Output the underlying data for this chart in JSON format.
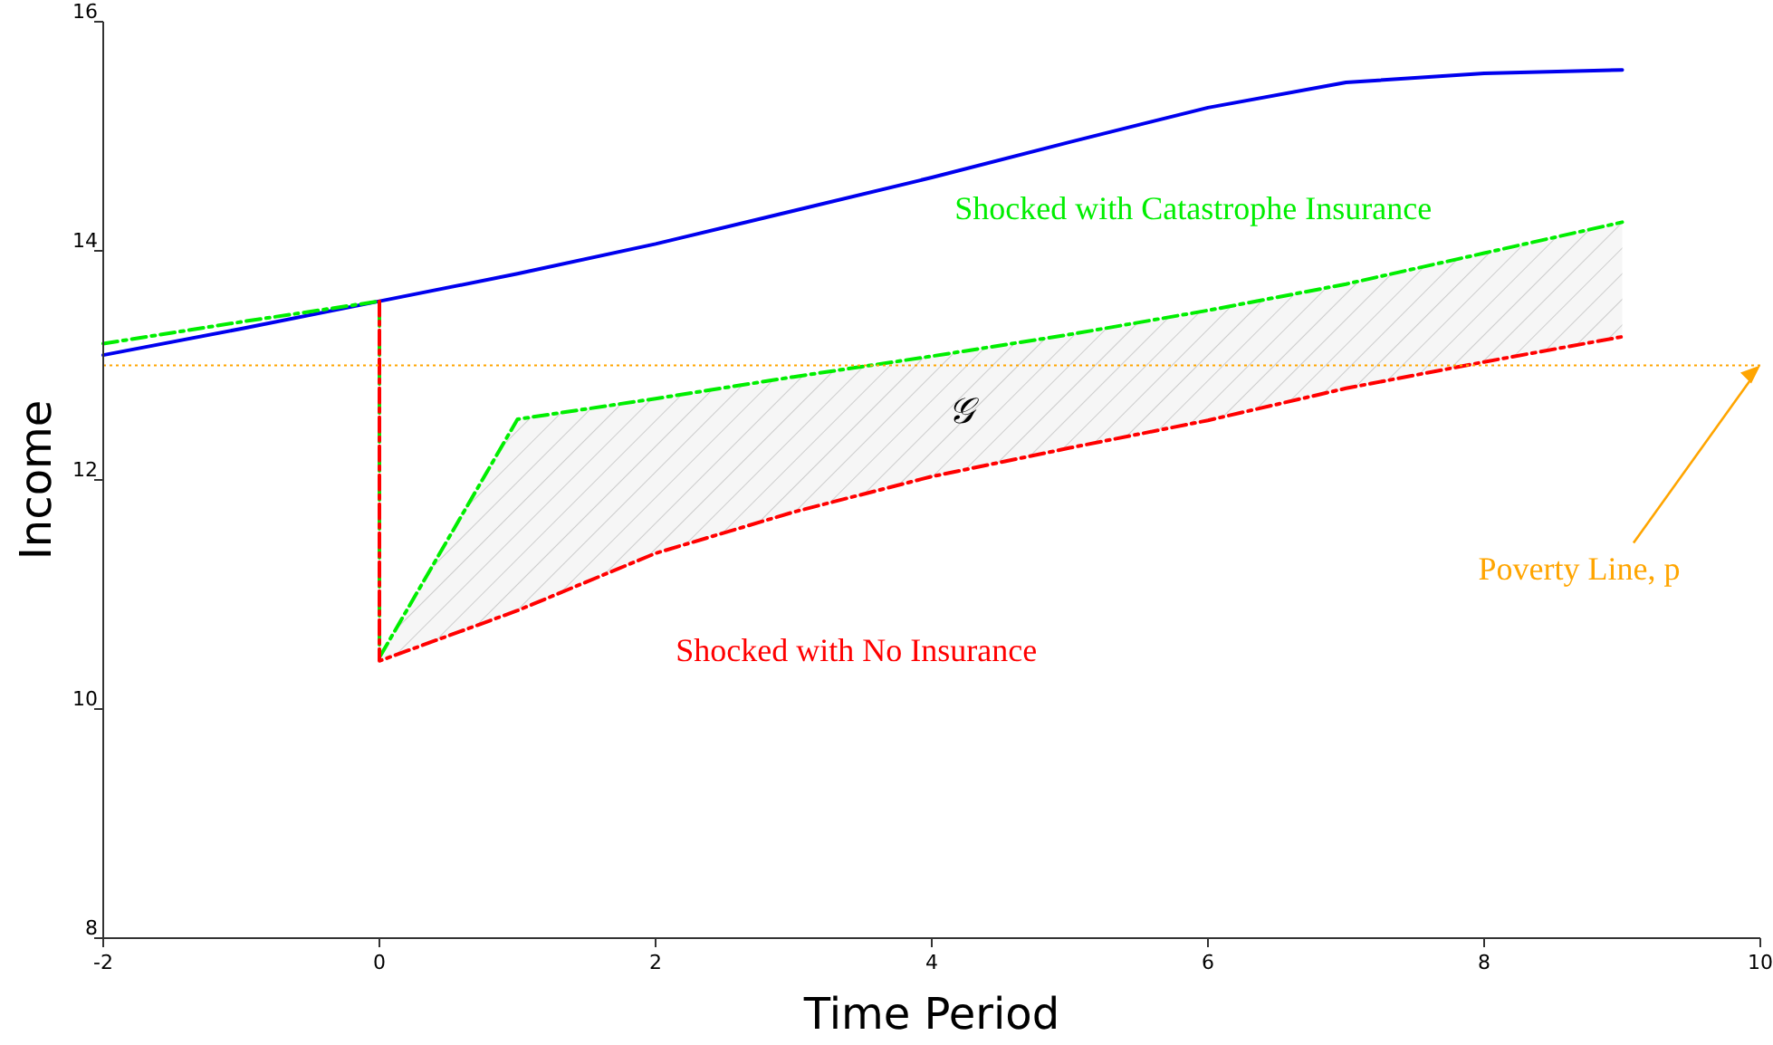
{
  "chart_data": {
    "type": "line",
    "xlabel": "Time Period",
    "ylabel": "Income",
    "xlim": [
      -2,
      10
    ],
    "ylim": [
      8,
      16
    ],
    "xticks": [
      -2,
      0,
      2,
      4,
      6,
      8,
      10
    ],
    "yticks": [
      8,
      10,
      12,
      14,
      16
    ],
    "grid": false,
    "series": [
      {
        "color": "#0000ee",
        "line_style": "solid",
        "x": [
          -2,
          -1,
          0,
          1,
          2,
          3,
          4,
          5,
          6,
          7,
          8,
          9
        ],
        "values": [
          13.09,
          13.32,
          13.56,
          13.8,
          14.06,
          14.35,
          14.64,
          14.95,
          15.25,
          15.47,
          15.55,
          15.58
        ]
      },
      {
        "name": "Shocked with Catastrophe Insurance",
        "color": "#00ee00",
        "line_style": "dashed",
        "x": [
          -2,
          -1,
          0,
          0,
          1,
          2,
          3,
          4,
          5,
          6,
          7,
          8,
          9
        ],
        "values": [
          13.19,
          13.38,
          13.56,
          10.45,
          12.53,
          12.71,
          12.9,
          13.08,
          13.27,
          13.48,
          13.71,
          13.98,
          14.25
        ],
        "lower": [
          null,
          null,
          null,
          10.42,
          10.86,
          11.36,
          11.72,
          12.03,
          12.28,
          12.52,
          12.8,
          13.03,
          13.25
        ],
        "upper": [
          null,
          null,
          null,
          10.45,
          12.53,
          12.71,
          12.9,
          13.08,
          13.27,
          13.48,
          13.71,
          13.98,
          14.25
        ]
      },
      {
        "name": "Shocked with No Insurance",
        "color": "#ff0000",
        "line_style": "dashed",
        "x": [
          0,
          0,
          1,
          2,
          3,
          4,
          5,
          6,
          7,
          8,
          9
        ],
        "values": [
          13.56,
          10.42,
          10.86,
          11.36,
          11.72,
          12.03,
          12.28,
          12.52,
          12.8,
          13.03,
          13.25
        ]
      }
    ],
    "ref_lines": [
      {
        "axis": "y",
        "value": 13,
        "label": "Poverty Line, p",
        "color": "#ffa500",
        "line_style": "dotted"
      }
    ],
    "annotations": [
      "𝒢"
    ]
  }
}
